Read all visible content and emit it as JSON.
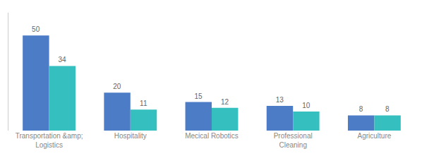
{
  "chart_data": {
    "type": "bar",
    "categories": [
      "Transportation &amp;\nLogistics",
      "Hospitality",
      "Mecical Robotics",
      "Professional\nCleaning",
      "Agriculture"
    ],
    "series": [
      {
        "color": "#4D7CC7",
        "values": [
          50,
          20,
          15,
          13,
          8
        ]
      },
      {
        "color": "#36BFBF",
        "values": [
          34,
          11,
          12,
          10,
          8
        ]
      }
    ],
    "ylim": [
      0,
      62
    ],
    "data_labels": true,
    "tick_labels": "x",
    "grid": false
  }
}
